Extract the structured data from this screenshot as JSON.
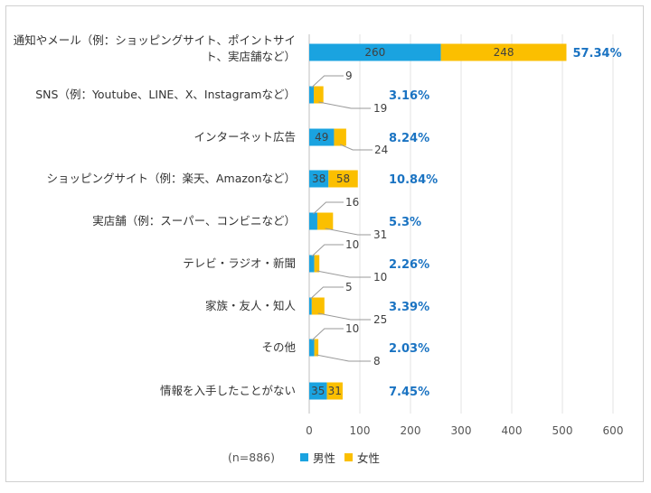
{
  "chart_data": {
    "type": "bar",
    "orientation": "horizontal",
    "stacked": true,
    "categories": [
      [
        "通知やメール（例：ショッピングサイト、ポイントサイ",
        "ト、実店舗など）"
      ],
      [
        "SNS（例：Youtube、LINE、X、Instagramなど）"
      ],
      [
        "インターネット広告"
      ],
      [
        "ショッピングサイト（例：楽天、Amazonなど）"
      ],
      [
        "実店舗（例：スーパー、コンビニなど）"
      ],
      [
        "テレビ・ラジオ・新聞"
      ],
      [
        "家族・友人・知人"
      ],
      [
        "その他"
      ],
      [
        "情報を入手したことがない"
      ]
    ],
    "series": [
      {
        "name": "男性",
        "color": "#1aa3e0",
        "values": [
          260,
          9,
          49,
          38,
          16,
          10,
          5,
          10,
          35
        ]
      },
      {
        "name": "女性",
        "color": "#fbbf00",
        "values": [
          248,
          19,
          24,
          58,
          31,
          10,
          25,
          8,
          31
        ]
      }
    ],
    "percentages": [
      "57.34%",
      "3.16%",
      "8.24%",
      "10.84%",
      "5.3%",
      "2.26%",
      "3.39%",
      "2.03%",
      "7.45%"
    ],
    "xlim": [
      0,
      600
    ],
    "xticks": [
      0,
      100,
      200,
      300,
      400,
      500,
      600
    ],
    "grid": true,
    "note": "(n=886)",
    "legend_position": "bottom"
  }
}
